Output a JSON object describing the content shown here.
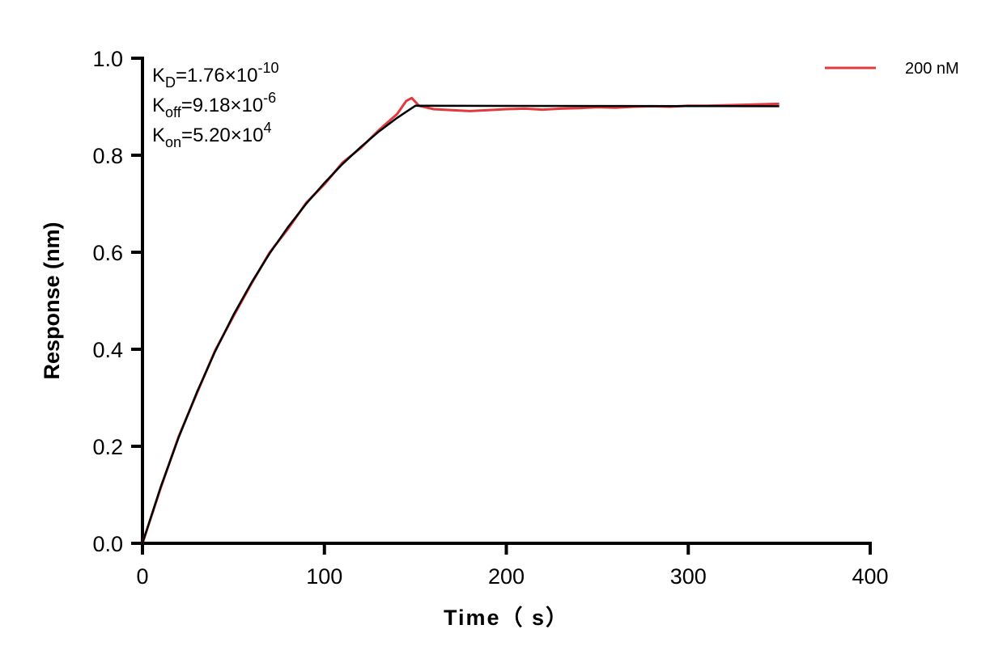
{
  "chart_data": {
    "type": "line",
    "title": "",
    "xlabel": "Time（ s）",
    "ylabel": "Response (nm)",
    "xlim": [
      0,
      400
    ],
    "ylim": [
      0,
      1.0
    ],
    "xticks": [
      "0",
      "100",
      "200",
      "300",
      "400"
    ],
    "yticks": [
      "0.0",
      "0.2",
      "0.4",
      "0.6",
      "0.8",
      "1.0"
    ],
    "grid": false,
    "legend_position": "top-right",
    "annotations": [
      {
        "base": "K",
        "sub": "D",
        "value": "=1.76×10",
        "exp": "-10"
      },
      {
        "base": "K",
        "sub": "off",
        "value": "=9.18×10",
        "exp": "-6"
      },
      {
        "base": "K",
        "sub": "on",
        "value": "=5.20×10",
        "exp": "4"
      }
    ],
    "series": [
      {
        "name": "200 nM",
        "color": "#e0393e",
        "x": [
          0,
          10,
          20,
          30,
          40,
          50,
          60,
          70,
          80,
          90,
          100,
          110,
          120,
          130,
          140,
          145,
          148,
          152,
          160,
          170,
          180,
          190,
          200,
          210,
          220,
          230,
          240,
          250,
          260,
          270,
          280,
          290,
          300,
          310,
          320,
          330,
          340,
          350
        ],
        "y": [
          0,
          0.114,
          0.221,
          0.31,
          0.398,
          0.468,
          0.536,
          0.6,
          0.648,
          0.702,
          0.74,
          0.785,
          0.815,
          0.852,
          0.885,
          0.912,
          0.918,
          0.902,
          0.895,
          0.893,
          0.891,
          0.893,
          0.895,
          0.896,
          0.894,
          0.896,
          0.897,
          0.899,
          0.898,
          0.9,
          0.901,
          0.9,
          0.902,
          0.902,
          0.903,
          0.904,
          0.905,
          0.906
        ]
      },
      {
        "color": "#000000",
        "x": [
          0,
          10,
          20,
          30,
          40,
          50,
          60,
          70,
          80,
          90,
          100,
          110,
          120,
          130,
          140,
          150,
          350
        ],
        "y": [
          0,
          0.116,
          0.219,
          0.312,
          0.396,
          0.471,
          0.538,
          0.598,
          0.652,
          0.7,
          0.743,
          0.782,
          0.817,
          0.849,
          0.877,
          0.902,
          0.901
        ]
      }
    ]
  }
}
